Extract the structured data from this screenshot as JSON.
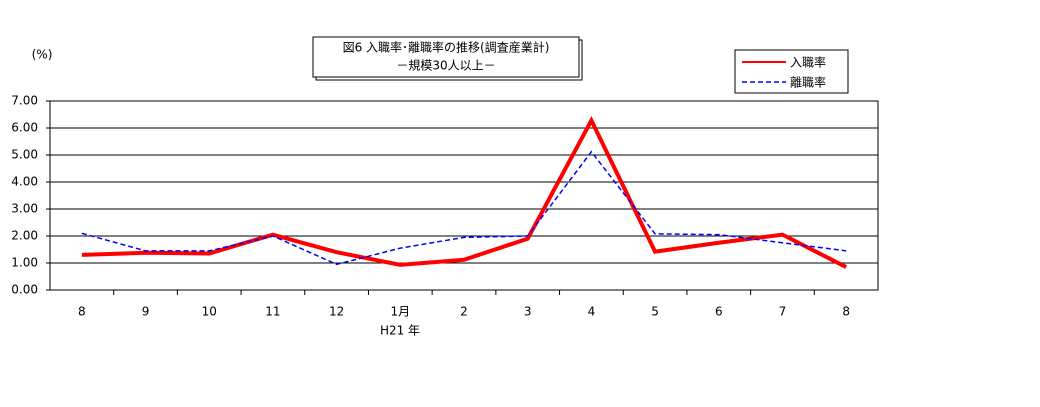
{
  "chart_data": {
    "type": "line",
    "title": "図6 入職率･離職率の推移(調査産業計)",
    "subtitle": "－規模30人以上－",
    "y_label": "(%)",
    "annotation": "H21 年",
    "categories": [
      "8",
      "9",
      "10",
      "11",
      "12",
      "1月",
      "2",
      "3",
      "4",
      "5",
      "6",
      "7",
      "8"
    ],
    "series": [
      {
        "name": "入職率",
        "color": "#ff0000",
        "style": "solid",
        "values": [
          1.3,
          1.38,
          1.35,
          2.05,
          1.4,
          0.93,
          1.12,
          1.9,
          6.28,
          1.42,
          1.75,
          2.05,
          0.85
        ]
      },
      {
        "name": "離職率",
        "color": "#0000ff",
        "style": "dashed",
        "values": [
          2.1,
          1.45,
          1.45,
          2.0,
          0.95,
          1.55,
          1.95,
          2.0,
          5.12,
          2.08,
          2.05,
          1.75,
          1.45
        ]
      }
    ],
    "ylim": [
      0,
      7
    ],
    "yticks": [
      {
        "value": 0,
        "label": "0.00"
      },
      {
        "value": 1,
        "label": "1.00"
      },
      {
        "value": 2,
        "label": "2.00"
      },
      {
        "value": 3,
        "label": "3.00"
      },
      {
        "value": 4,
        "label": "4.00"
      },
      {
        "value": 5,
        "label": "5.00"
      },
      {
        "value": 6,
        "label": "6.00"
      },
      {
        "value": 7,
        "label": "7.00"
      }
    ],
    "grid": true,
    "legend": "top-right"
  }
}
